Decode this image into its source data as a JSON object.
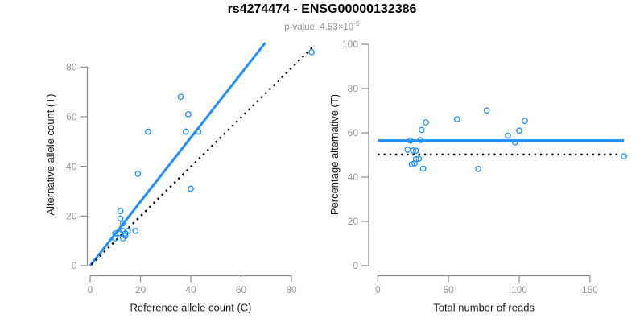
{
  "header": {
    "title": "rs4274474 - ENSG00000132386",
    "pvalue_label": "p-value: 4.53×10",
    "pvalue_exponent": "-5"
  },
  "colors": {
    "accent_blue": "#1E90FF",
    "reference_black": "#000000",
    "axis_gray": "#8c8c8c",
    "tick_label_gray": "#949494",
    "label_dark": "#1a1a1a"
  },
  "chart_data": [
    {
      "type": "scatter",
      "panel": "allele-counts",
      "xlabel": "Reference allele count (C)",
      "ylabel": "Alternative allele count (T)",
      "xlim": [
        0,
        80
      ],
      "ylim": [
        0,
        80
      ],
      "xticks": [
        0,
        20,
        40,
        60,
        80
      ],
      "yticks": [
        0,
        20,
        40,
        60,
        80
      ],
      "grid": false,
      "legend": "none",
      "points": [
        [
          88,
          86
        ],
        [
          36,
          68
        ],
        [
          39,
          61
        ],
        [
          43,
          54
        ],
        [
          38,
          54
        ],
        [
          23,
          54
        ],
        [
          19,
          37
        ],
        [
          40,
          31
        ],
        [
          12,
          22
        ],
        [
          12,
          19
        ],
        [
          13,
          17
        ],
        [
          15,
          14
        ],
        [
          13,
          14
        ],
        [
          18,
          14
        ],
        [
          10,
          13
        ],
        [
          12,
          13
        ],
        [
          14,
          13
        ],
        [
          14,
          12
        ],
        [
          13,
          11
        ],
        [
          10,
          11
        ]
      ],
      "lines": [
        {
          "id": "regression-line",
          "style": "solid",
          "color_key": "accent_blue",
          "x1": 0,
          "y1": 0,
          "x2": 69.6,
          "y2": 89.8
        },
        {
          "id": "identity-line",
          "style": "dotted",
          "color_key": "reference_black",
          "x1": 0.5,
          "y1": 0.5,
          "x2": 89,
          "y2": 88.6
        }
      ]
    },
    {
      "type": "scatter",
      "panel": "percentage-vs-reads",
      "xlabel": "Total number of reads",
      "ylabel": "Percentage alternative (T)",
      "xlim": [
        0,
        174
      ],
      "ylim": [
        0,
        100
      ],
      "xticks": [
        0,
        50,
        100,
        150
      ],
      "yticks": [
        0,
        20,
        40,
        60,
        80,
        100
      ],
      "grid": false,
      "legend": "none",
      "points": [
        [
          174,
          49.4
        ],
        [
          104,
          65.4
        ],
        [
          100,
          61.0
        ],
        [
          97,
          55.7
        ],
        [
          92,
          58.7
        ],
        [
          77,
          70.1
        ],
        [
          56,
          66.1
        ],
        [
          71,
          43.7
        ],
        [
          34,
          64.7
        ],
        [
          31,
          61.3
        ],
        [
          30,
          56.7
        ],
        [
          29,
          48.3
        ],
        [
          27,
          51.9
        ],
        [
          32,
          43.8
        ],
        [
          23,
          56.5
        ],
        [
          25,
          52.0
        ],
        [
          27,
          48.1
        ],
        [
          26,
          46.2
        ],
        [
          24,
          45.8
        ],
        [
          21,
          52.4
        ]
      ],
      "lines": [
        {
          "id": "mean-percentage-line",
          "style": "solid",
          "color_key": "accent_blue",
          "x1": 0.4,
          "y1": 56.5,
          "x2": 174,
          "y2": 56.5
        },
        {
          "id": "null-50pct-line",
          "style": "dotted",
          "color_key": "reference_black",
          "x1": 0,
          "y1": 50.2,
          "x2": 172,
          "y2": 50.2
        }
      ]
    }
  ]
}
